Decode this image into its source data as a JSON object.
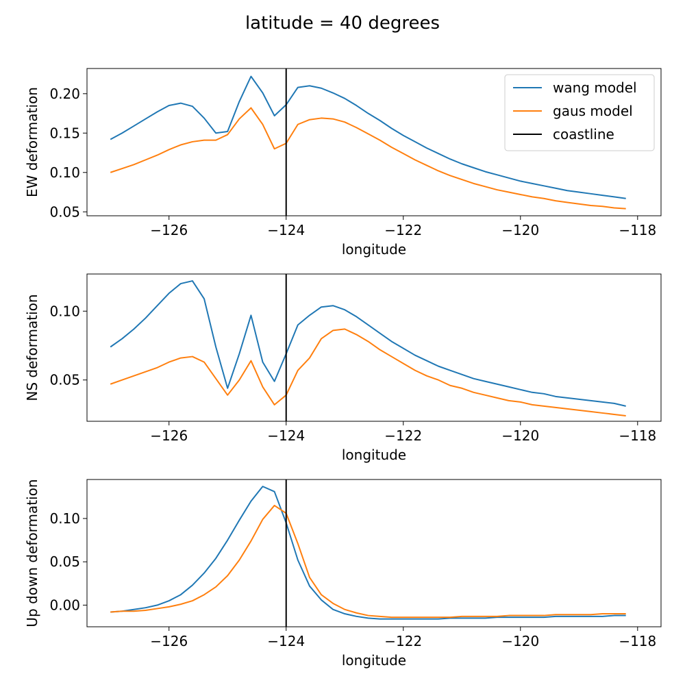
{
  "suptitle": "latitude = 40 degrees",
  "legend": [
    {
      "label": "wang model",
      "color": "#1f77b4"
    },
    {
      "label": "gaus model",
      "color": "#ff7f0e"
    },
    {
      "label": "coastline",
      "color": "#000000"
    }
  ],
  "chart_data": [
    {
      "type": "line",
      "xlabel": "longitude",
      "ylabel": "EW deformation",
      "xlim": [
        -127.4,
        -117.6
      ],
      "ylim": [
        0.045,
        0.232
      ],
      "xticks": [
        -126,
        -124,
        -122,
        -120,
        -118
      ],
      "xtick_labels": [
        "−126",
        "−124",
        "−122",
        "−120",
        "−118"
      ],
      "yticks": [
        0.05,
        0.1,
        0.15,
        0.2
      ],
      "ytick_labels": [
        "0.05",
        "0.10",
        "0.15",
        "0.20"
      ],
      "legend_position": "upper right",
      "vline": {
        "x": -124,
        "name": "coastline",
        "color": "#000000"
      },
      "x": [
        -127.0,
        -126.8,
        -126.6,
        -126.4,
        -126.2,
        -126.0,
        -125.8,
        -125.6,
        -125.4,
        -125.2,
        -125.0,
        -124.8,
        -124.6,
        -124.4,
        -124.2,
        -124.0,
        -123.8,
        -123.6,
        -123.4,
        -123.2,
        -123.0,
        -122.8,
        -122.6,
        -122.4,
        -122.2,
        -122.0,
        -121.8,
        -121.6,
        -121.4,
        -121.2,
        -121.0,
        -120.8,
        -120.6,
        -120.4,
        -120.2,
        -120.0,
        -119.8,
        -119.6,
        -119.4,
        -119.2,
        -119.0,
        -118.8,
        -118.6,
        -118.4,
        -118.2
      ],
      "series": [
        {
          "name": "wang model",
          "color": "#1f77b4",
          "values": [
            0.142,
            0.15,
            0.159,
            0.168,
            0.177,
            0.185,
            0.188,
            0.184,
            0.169,
            0.15,
            0.152,
            0.19,
            0.222,
            0.201,
            0.172,
            0.186,
            0.208,
            0.21,
            0.207,
            0.201,
            0.194,
            0.185,
            0.175,
            0.166,
            0.156,
            0.147,
            0.139,
            0.131,
            0.124,
            0.117,
            0.111,
            0.106,
            0.101,
            0.097,
            0.093,
            0.089,
            0.086,
            0.083,
            0.08,
            0.077,
            0.075,
            0.073,
            0.071,
            0.069,
            0.067
          ]
        },
        {
          "name": "gaus model",
          "color": "#ff7f0e",
          "values": [
            0.1,
            0.105,
            0.11,
            0.116,
            0.122,
            0.129,
            0.135,
            0.139,
            0.141,
            0.141,
            0.148,
            0.168,
            0.182,
            0.161,
            0.13,
            0.137,
            0.161,
            0.167,
            0.169,
            0.168,
            0.164,
            0.157,
            0.149,
            0.141,
            0.132,
            0.124,
            0.116,
            0.109,
            0.102,
            0.096,
            0.091,
            0.086,
            0.082,
            0.078,
            0.075,
            0.072,
            0.069,
            0.067,
            0.064,
            0.062,
            0.06,
            0.058,
            0.057,
            0.055,
            0.054
          ]
        }
      ]
    },
    {
      "type": "line",
      "xlabel": "longitude",
      "ylabel": "NS deformation",
      "xlim": [
        -127.4,
        -117.6
      ],
      "ylim": [
        0.02,
        0.127
      ],
      "xticks": [
        -126,
        -124,
        -122,
        -120,
        -118
      ],
      "xtick_labels": [
        "−126",
        "−124",
        "−122",
        "−120",
        "−118"
      ],
      "yticks": [
        0.05,
        0.1
      ],
      "ytick_labels": [
        "0.05",
        "0.10"
      ],
      "vline": {
        "x": -124,
        "name": "coastline",
        "color": "#000000"
      },
      "x": [
        -127.0,
        -126.8,
        -126.6,
        -126.4,
        -126.2,
        -126.0,
        -125.8,
        -125.6,
        -125.4,
        -125.2,
        -125.0,
        -124.8,
        -124.6,
        -124.4,
        -124.2,
        -124.0,
        -123.8,
        -123.6,
        -123.4,
        -123.2,
        -123.0,
        -122.8,
        -122.6,
        -122.4,
        -122.2,
        -122.0,
        -121.8,
        -121.6,
        -121.4,
        -121.2,
        -121.0,
        -120.8,
        -120.6,
        -120.4,
        -120.2,
        -120.0,
        -119.8,
        -119.6,
        -119.4,
        -119.2,
        -119.0,
        -118.8,
        -118.6,
        -118.4,
        -118.2
      ],
      "series": [
        {
          "name": "wang model",
          "color": "#1f77b4",
          "values": [
            0.074,
            0.08,
            0.087,
            0.095,
            0.104,
            0.113,
            0.12,
            0.122,
            0.109,
            0.074,
            0.044,
            0.069,
            0.097,
            0.063,
            0.049,
            0.069,
            0.09,
            0.097,
            0.103,
            0.104,
            0.101,
            0.096,
            0.09,
            0.084,
            0.078,
            0.073,
            0.068,
            0.064,
            0.06,
            0.057,
            0.054,
            0.051,
            0.049,
            0.047,
            0.045,
            0.043,
            0.041,
            0.04,
            0.038,
            0.037,
            0.036,
            0.035,
            0.034,
            0.033,
            0.031
          ]
        },
        {
          "name": "gaus model",
          "color": "#ff7f0e",
          "values": [
            0.047,
            0.05,
            0.053,
            0.056,
            0.059,
            0.063,
            0.066,
            0.067,
            0.063,
            0.051,
            0.039,
            0.05,
            0.064,
            0.045,
            0.032,
            0.039,
            0.057,
            0.066,
            0.08,
            0.086,
            0.087,
            0.083,
            0.078,
            0.072,
            0.067,
            0.062,
            0.057,
            0.053,
            0.05,
            0.046,
            0.044,
            0.041,
            0.039,
            0.037,
            0.035,
            0.034,
            0.032,
            0.031,
            0.03,
            0.029,
            0.028,
            0.027,
            0.026,
            0.025,
            0.024
          ]
        }
      ]
    },
    {
      "type": "line",
      "xlabel": "longitude",
      "ylabel": "Up down deformation",
      "xlim": [
        -127.4,
        -117.6
      ],
      "ylim": [
        -0.025,
        0.145
      ],
      "xticks": [
        -126,
        -124,
        -122,
        -120,
        -118
      ],
      "xtick_labels": [
        "−126",
        "−124",
        "−122",
        "−120",
        "−118"
      ],
      "yticks": [
        0.0,
        0.05,
        0.1
      ],
      "ytick_labels": [
        "0.00",
        "0.05",
        "0.10"
      ],
      "vline": {
        "x": -124,
        "name": "coastline",
        "color": "#000000"
      },
      "x": [
        -127.0,
        -126.8,
        -126.6,
        -126.4,
        -126.2,
        -126.0,
        -125.8,
        -125.6,
        -125.4,
        -125.2,
        -125.0,
        -124.8,
        -124.6,
        -124.4,
        -124.2,
        -124.0,
        -123.8,
        -123.6,
        -123.4,
        -123.2,
        -123.0,
        -122.8,
        -122.6,
        -122.4,
        -122.2,
        -122.0,
        -121.8,
        -121.6,
        -121.4,
        -121.2,
        -121.0,
        -120.8,
        -120.6,
        -120.4,
        -120.2,
        -120.0,
        -119.8,
        -119.6,
        -119.4,
        -119.2,
        -119.0,
        -118.8,
        -118.6,
        -118.4,
        -118.2
      ],
      "series": [
        {
          "name": "wang model",
          "color": "#1f77b4",
          "values": [
            -0.008,
            -0.007,
            -0.005,
            -0.003,
            0.0,
            0.005,
            0.012,
            0.023,
            0.037,
            0.054,
            0.075,
            0.098,
            0.12,
            0.137,
            0.131,
            0.095,
            0.052,
            0.022,
            0.006,
            -0.005,
            -0.01,
            -0.013,
            -0.015,
            -0.016,
            -0.016,
            -0.016,
            -0.016,
            -0.016,
            -0.016,
            -0.015,
            -0.015,
            -0.015,
            -0.015,
            -0.014,
            -0.014,
            -0.014,
            -0.014,
            -0.014,
            -0.013,
            -0.013,
            -0.013,
            -0.013,
            -0.013,
            -0.012,
            -0.012
          ]
        },
        {
          "name": "gaus model",
          "color": "#ff7f0e",
          "values": [
            -0.008,
            -0.007,
            -0.007,
            -0.006,
            -0.004,
            -0.002,
            0.001,
            0.005,
            0.012,
            0.021,
            0.034,
            0.052,
            0.074,
            0.099,
            0.115,
            0.106,
            0.071,
            0.032,
            0.012,
            0.002,
            -0.005,
            -0.009,
            -0.012,
            -0.013,
            -0.014,
            -0.014,
            -0.014,
            -0.014,
            -0.014,
            -0.014,
            -0.013,
            -0.013,
            -0.013,
            -0.013,
            -0.012,
            -0.012,
            -0.012,
            -0.012,
            -0.011,
            -0.011,
            -0.011,
            -0.011,
            -0.01,
            -0.01,
            -0.01
          ]
        }
      ]
    }
  ]
}
